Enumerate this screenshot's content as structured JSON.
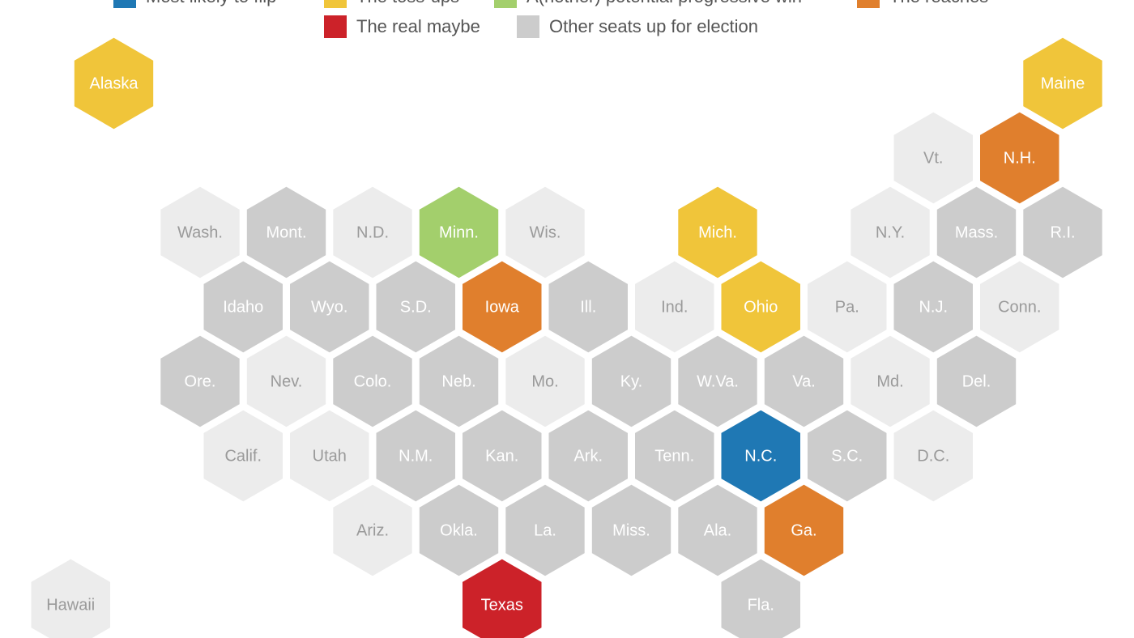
{
  "legend": [
    {
      "name": "Most likely to flip",
      "color": "#1f78b4"
    },
    {
      "name": "The toss-ups",
      "color": "#f0c53a"
    },
    {
      "name": "A(nother) potential progressive win",
      "color": "#a3cf6c"
    },
    {
      "name": "The reaches",
      "color": "#e07f2d"
    },
    {
      "name": "The real maybe",
      "color": "#cc2229"
    },
    {
      "name": "Other seats up for election",
      "color": "#cccccc"
    }
  ],
  "states": [
    {
      "label": "Alaska",
      "color": "#f0c53a"
    },
    {
      "label": "Maine",
      "color": "#f0c53a"
    },
    {
      "label": "Vt.",
      "color": "#ececec"
    },
    {
      "label": "N.H.",
      "color": "#e07f2d"
    },
    {
      "label": "Wash.",
      "color": "#ececec"
    },
    {
      "label": "Mont.",
      "color": "#cccccc"
    },
    {
      "label": "N.D.",
      "color": "#ececec"
    },
    {
      "label": "Minn.",
      "color": "#a3cf6c"
    },
    {
      "label": "Wis.",
      "color": "#ececec"
    },
    {
      "label": "Mich.",
      "color": "#f0c53a"
    },
    {
      "label": "N.Y.",
      "color": "#ececec"
    },
    {
      "label": "Mass.",
      "color": "#cccccc"
    },
    {
      "label": "R.I.",
      "color": "#cccccc"
    },
    {
      "label": "Idaho",
      "color": "#cccccc"
    },
    {
      "label": "Wyo.",
      "color": "#cccccc"
    },
    {
      "label": "S.D.",
      "color": "#cccccc"
    },
    {
      "label": "Iowa",
      "color": "#e07f2d"
    },
    {
      "label": "Ill.",
      "color": "#cccccc"
    },
    {
      "label": "Ind.",
      "color": "#ececec"
    },
    {
      "label": "Ohio",
      "color": "#f0c53a"
    },
    {
      "label": "Pa.",
      "color": "#ececec"
    },
    {
      "label": "N.J.",
      "color": "#cccccc"
    },
    {
      "label": "Conn.",
      "color": "#ececec"
    },
    {
      "label": "Ore.",
      "color": "#cccccc"
    },
    {
      "label": "Nev.",
      "color": "#ececec"
    },
    {
      "label": "Colo.",
      "color": "#cccccc"
    },
    {
      "label": "Neb.",
      "color": "#cccccc"
    },
    {
      "label": "Mo.",
      "color": "#ececec"
    },
    {
      "label": "Ky.",
      "color": "#cccccc"
    },
    {
      "label": "W.Va.",
      "color": "#cccccc"
    },
    {
      "label": "Va.",
      "color": "#cccccc"
    },
    {
      "label": "Md.",
      "color": "#ececec"
    },
    {
      "label": "Del.",
      "color": "#cccccc"
    },
    {
      "label": "Calif.",
      "color": "#ececec"
    },
    {
      "label": "Utah",
      "color": "#ececec"
    },
    {
      "label": "N.M.",
      "color": "#cccccc"
    },
    {
      "label": "Kan.",
      "color": "#cccccc"
    },
    {
      "label": "Ark.",
      "color": "#cccccc"
    },
    {
      "label": "Tenn.",
      "color": "#cccccc"
    },
    {
      "label": "N.C.",
      "color": "#1f78b4"
    },
    {
      "label": "S.C.",
      "color": "#cccccc"
    },
    {
      "label": "D.C.",
      "color": "#ececec"
    },
    {
      "label": "Ariz.",
      "color": "#ececec"
    },
    {
      "label": "Okla.",
      "color": "#cccccc"
    },
    {
      "label": "La.",
      "color": "#cccccc"
    },
    {
      "label": "Miss.",
      "color": "#cccccc"
    },
    {
      "label": "Ala.",
      "color": "#cccccc"
    },
    {
      "label": "Ga.",
      "color": "#e07f2d"
    },
    {
      "label": "Hawaii",
      "color": "#ececec"
    },
    {
      "label": "Texas",
      "color": "#cc2229"
    },
    {
      "label": "Fla.",
      "color": "#cccccc"
    }
  ]
}
